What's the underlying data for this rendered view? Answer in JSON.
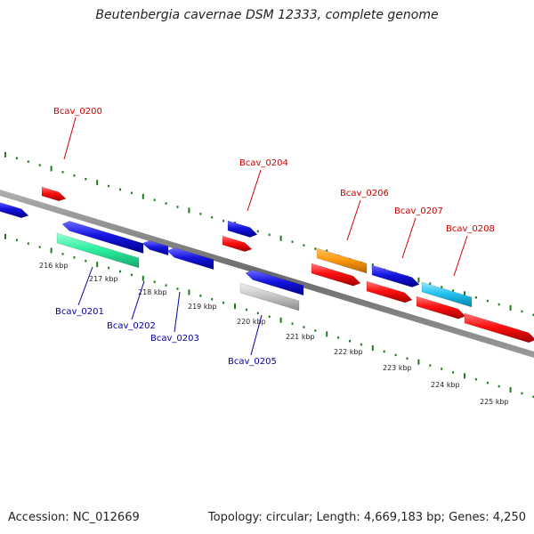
{
  "title": "Beutenbergia cavernae DSM 12333, complete genome",
  "footer": {
    "accession": "Accession: NC_012669",
    "summary": "Topology: circular; Length: 4,669,183 bp; Genes: 4,250"
  },
  "colors": {
    "axis": "#808080",
    "tick": "#1e7a1e",
    "label_top": "#cc0000",
    "label_bottom": "#0000aa",
    "scale_text": "#222222"
  },
  "scale": [
    {
      "label": "216 kbp",
      "pos_kbp": 216
    },
    {
      "label": "217 kbp",
      "pos_kbp": 217
    },
    {
      "label": "218 kbp",
      "pos_kbp": 218
    },
    {
      "label": "219 kbp",
      "pos_kbp": 219
    },
    {
      "label": "220 kbp",
      "pos_kbp": 220
    },
    {
      "label": "221 kbp",
      "pos_kbp": 221
    },
    {
      "label": "222 kbp",
      "pos_kbp": 222
    },
    {
      "label": "223 kbp",
      "pos_kbp": 223
    },
    {
      "label": "224 kbp",
      "pos_kbp": 224
    },
    {
      "label": "225 kbp",
      "pos_kbp": 225
    }
  ],
  "labels": [
    {
      "text": "Bcav_0200",
      "side": "top"
    },
    {
      "text": "Bcav_0201",
      "side": "bottom"
    },
    {
      "text": "Bcav_0202",
      "side": "bottom"
    },
    {
      "text": "Bcav_0203",
      "side": "bottom"
    },
    {
      "text": "Bcav_0204",
      "side": "top"
    },
    {
      "text": "Bcav_0205",
      "side": "bottom"
    },
    {
      "text": "Bcav_0206",
      "side": "top"
    },
    {
      "text": "Bcav_0207",
      "side": "top"
    },
    {
      "text": "Bcav_0208",
      "side": "top"
    }
  ]
}
